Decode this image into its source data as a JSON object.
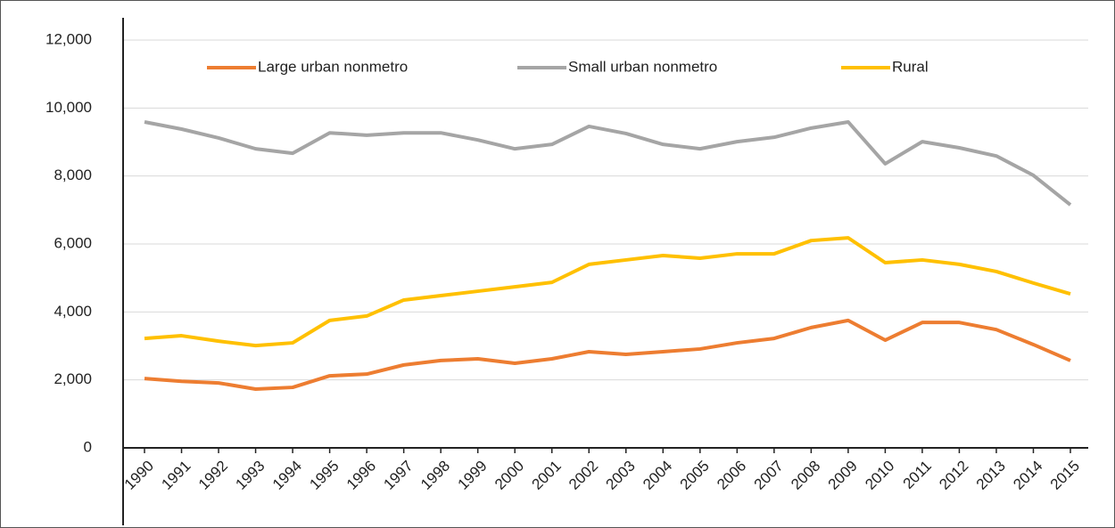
{
  "chart_data": {
    "type": "line",
    "categories": [
      "1990",
      "1991",
      "1992",
      "1993",
      "1994",
      "1995",
      "1996",
      "1997",
      "1998",
      "1999",
      "2000",
      "2001",
      "2002",
      "2003",
      "2004",
      "2005",
      "2006",
      "2007",
      "2008",
      "2009",
      "2010",
      "2011",
      "2012",
      "2013",
      "2014",
      "2015"
    ],
    "series": [
      {
        "name": "Large urban nonmetro",
        "color": "#ed7d31",
        "values": [
          2040,
          1960,
          1910,
          1730,
          1780,
          2120,
          2170,
          2440,
          2570,
          2620,
          2490,
          2620,
          2830,
          2750,
          2830,
          2910,
          3090,
          3220,
          3540,
          3750,
          3170,
          3690,
          3690,
          3480,
          3040,
          2570
        ]
      },
      {
        "name": "Small urban nonmetro",
        "color": "#a5a5a5",
        "values": [
          9590,
          9380,
          9120,
          8800,
          8670,
          9270,
          9200,
          9270,
          9270,
          9060,
          8800,
          8930,
          9460,
          9250,
          8930,
          8800,
          9010,
          9140,
          9410,
          9590,
          8360,
          9010,
          8830,
          8590,
          8020,
          7150
        ]
      },
      {
        "name": "Rural",
        "color": "#ffc000",
        "values": [
          3220,
          3300,
          3140,
          3010,
          3090,
          3750,
          3880,
          4350,
          4480,
          4610,
          4740,
          4870,
          5400,
          5530,
          5660,
          5580,
          5710,
          5710,
          6100,
          6180,
          5450,
          5530,
          5400,
          5190,
          4850,
          4530
        ]
      }
    ],
    "ylim": [
      0,
      12000
    ],
    "yticks": [
      0,
      {
        "value": 2000,
        "label": "2,000"
      },
      {
        "value": 4000,
        "label": "4,000"
      },
      {
        "value": 6000,
        "label": "6,000"
      },
      {
        "value": 8000,
        "label": "8,000"
      },
      {
        "value": 10000,
        "label": "10,000"
      },
      {
        "value": 12000,
        "label": "12,000"
      }
    ],
    "grid": true,
    "legend": "top"
  }
}
